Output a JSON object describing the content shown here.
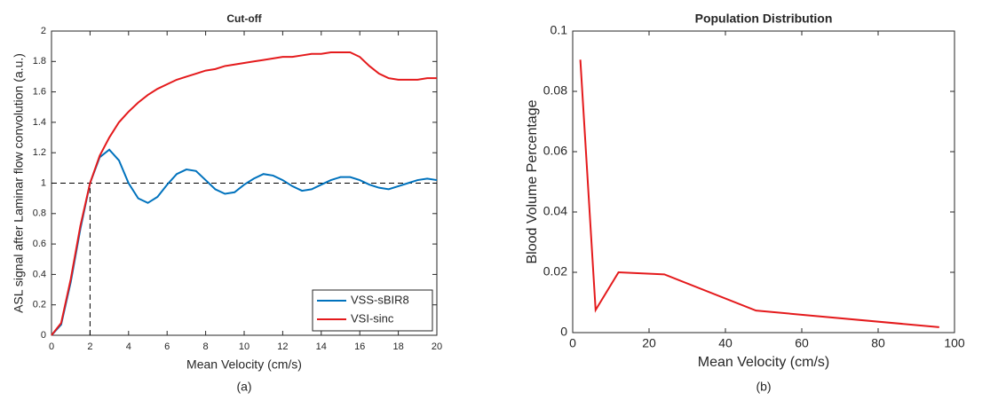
{
  "chart_data": [
    {
      "type": "line",
      "title": "Cut-off",
      "xlabel": "Mean Velocity (cm/s)",
      "ylabel": "ASL signal after Laminar flow convolution (a.u.)",
      "caption": "(a)",
      "xlim": [
        0,
        20
      ],
      "xticks": [
        0,
        2,
        4,
        6,
        8,
        10,
        12,
        14,
        16,
        18,
        20
      ],
      "ylim": [
        0,
        2
      ],
      "yticks": [
        0,
        0.2,
        0.4,
        0.6,
        0.8,
        1,
        1.2,
        1.4,
        1.6,
        1.8,
        2
      ],
      "hline": 1,
      "vline": 2,
      "legend": "lower right",
      "x": [
        0,
        0.5,
        1,
        1.5,
        2,
        2.5,
        3,
        3.5,
        4,
        4.5,
        5,
        5.5,
        6,
        6.5,
        7,
        7.5,
        8,
        8.5,
        9,
        9.5,
        10,
        10.5,
        11,
        11.5,
        12,
        12.5,
        13,
        13.5,
        14,
        14.5,
        15,
        15.5,
        16,
        16.5,
        17,
        17.5,
        18,
        18.5,
        19,
        19.5,
        20
      ],
      "series": [
        {
          "name": "VSS-sBIR8",
          "color": "#0072bd",
          "values": [
            0,
            0.07,
            0.35,
            0.7,
            1.0,
            1.17,
            1.22,
            1.15,
            1.0,
            0.9,
            0.87,
            0.91,
            0.99,
            1.06,
            1.09,
            1.08,
            1.02,
            0.96,
            0.93,
            0.94,
            0.99,
            1.03,
            1.06,
            1.05,
            1.02,
            0.98,
            0.95,
            0.96,
            0.99,
            1.02,
            1.04,
            1.04,
            1.02,
            0.99,
            0.97,
            0.96,
            0.98,
            1.0,
            1.02,
            1.03,
            1.02
          ]
        },
        {
          "name": "VSI-sinc",
          "color": "#e41a1c",
          "values": [
            0,
            0.08,
            0.37,
            0.72,
            1.0,
            1.18,
            1.3,
            1.4,
            1.47,
            1.53,
            1.58,
            1.62,
            1.65,
            1.68,
            1.7,
            1.72,
            1.74,
            1.75,
            1.77,
            1.78,
            1.79,
            1.8,
            1.81,
            1.82,
            1.83,
            1.83,
            1.84,
            1.85,
            1.85,
            1.86,
            1.86,
            1.86,
            1.83,
            1.77,
            1.72,
            1.69,
            1.68,
            1.68,
            1.68,
            1.69,
            1.69
          ]
        }
      ]
    },
    {
      "type": "line",
      "title": "Population Distribution",
      "xlabel": "Mean Velocity (cm/s)",
      "ylabel": "Blood Volume Percentage",
      "caption": "(b)",
      "xlim": [
        0,
        100
      ],
      "xticks": [
        0,
        20,
        40,
        60,
        80,
        100
      ],
      "ylim": [
        0,
        0.1
      ],
      "yticks": [
        0,
        0.02,
        0.04,
        0.06,
        0.08,
        0.1
      ],
      "x": [
        2,
        6,
        12,
        24,
        48,
        96
      ],
      "values": [
        0.0905,
        0.0075,
        0.02,
        0.0193,
        0.0073,
        0.0018
      ],
      "color": "#e41a1c"
    }
  ]
}
